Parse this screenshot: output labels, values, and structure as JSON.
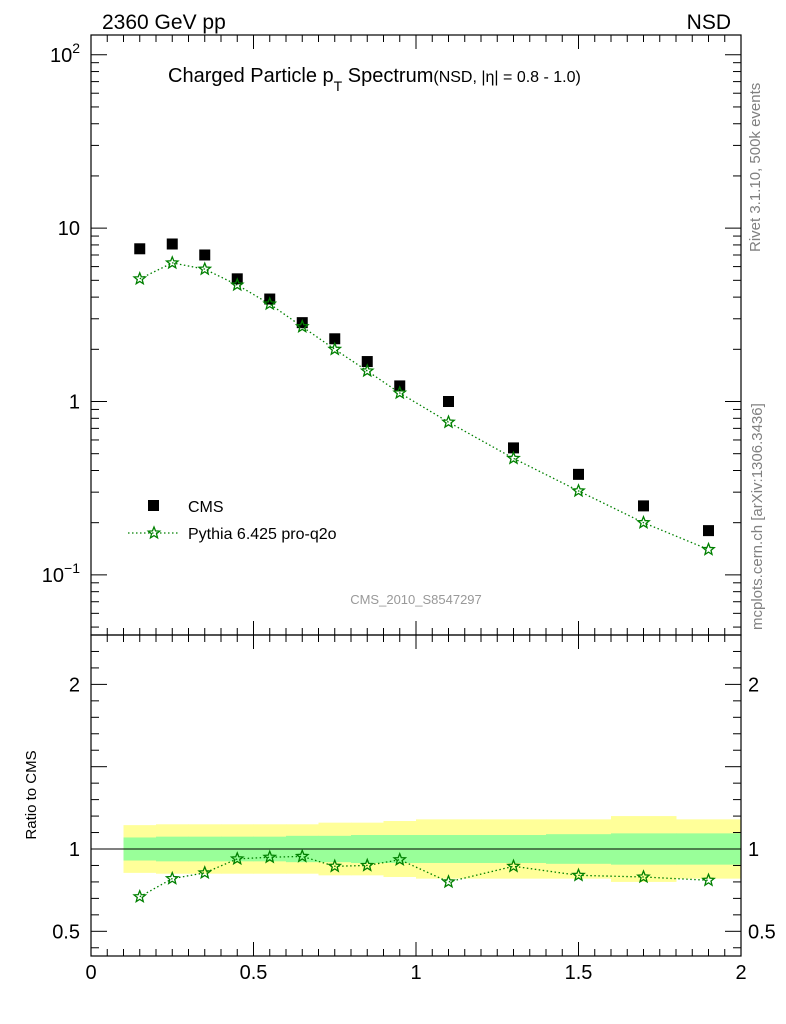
{
  "header": {
    "energy_label": "2360 GeV pp",
    "process_label": "NSD"
  },
  "side_labels": {
    "rivet": "Rivet 3.1.10,  500k events",
    "mcplots": "mcplots.cern.ch [arXiv:1306.3436]"
  },
  "analysis_tag": "CMS_2010_S8547297",
  "colors": {
    "data": "#000000",
    "mc": "#008000",
    "band_outer": "#ffff99",
    "band_inner": "#99ff99"
  },
  "chart_data": [
    {
      "type": "scatter",
      "panel": "main",
      "title_main": "Charged Particle p",
      "title_sub": "T",
      "title_main2": " Spectrum",
      "title_small": "(NSD, |η| = 0.8 - 1.0)",
      "yscale": "log",
      "xlim": [
        0,
        2
      ],
      "ylim": [
        0.045,
        130
      ],
      "yticks": [
        {
          "value": 100,
          "base": "10",
          "exp": "2"
        },
        {
          "value": 10,
          "base": "10",
          "exp": ""
        },
        {
          "value": 1,
          "base": "1",
          "exp": ""
        },
        {
          "value": 0.1,
          "base": "10",
          "exp": "−1"
        }
      ],
      "legend_position": "bottom-left",
      "series": [
        {
          "name": "CMS",
          "style": "square-marker",
          "x": [
            0.15,
            0.25,
            0.35,
            0.45,
            0.55,
            0.65,
            0.75,
            0.85,
            0.95,
            1.1,
            1.3,
            1.5,
            1.7,
            1.9
          ],
          "y": [
            7.6,
            8.1,
            7.0,
            5.1,
            3.9,
            2.85,
            2.3,
            1.7,
            1.23,
            1.0,
            0.54,
            0.38,
            0.25,
            0.18
          ]
        },
        {
          "name": "Pythia 6.425 pro-q2o",
          "style": "star-marker-dotted-line",
          "x": [
            0.15,
            0.25,
            0.35,
            0.45,
            0.55,
            0.65,
            0.75,
            0.85,
            0.95,
            1.1,
            1.3,
            1.5,
            1.7,
            1.9
          ],
          "y": [
            5.1,
            6.3,
            5.8,
            4.7,
            3.65,
            2.7,
            2.0,
            1.5,
            1.12,
            0.76,
            0.47,
            0.305,
            0.2,
            0.14
          ]
        }
      ]
    },
    {
      "type": "line",
      "panel": "ratio",
      "ylabel": "Ratio to CMS",
      "xlim": [
        0,
        2
      ],
      "ylim": [
        0.35,
        2.3
      ],
      "xticks": [
        {
          "value": 0,
          "label": "0"
        },
        {
          "value": 0.5,
          "label": "0.5"
        },
        {
          "value": 1,
          "label": "1"
        },
        {
          "value": 1.5,
          "label": "1.5"
        },
        {
          "value": 2,
          "label": "2"
        }
      ],
      "yticks": [
        {
          "value": 0.5,
          "label": "0.5"
        },
        {
          "value": 1,
          "label": "1"
        },
        {
          "value": 2,
          "label": "2"
        }
      ],
      "bands": {
        "edges": [
          0.1,
          0.2,
          0.3,
          0.4,
          0.5,
          0.6,
          0.7,
          0.8,
          0.9,
          1.0,
          1.2,
          1.4,
          1.6,
          1.8,
          2.0
        ],
        "outer_lo": [
          0.855,
          0.85,
          0.85,
          0.85,
          0.85,
          0.85,
          0.84,
          0.84,
          0.83,
          0.82,
          0.82,
          0.82,
          0.8,
          0.82
        ],
        "outer_hi": [
          1.145,
          1.15,
          1.15,
          1.15,
          1.15,
          1.15,
          1.16,
          1.16,
          1.17,
          1.18,
          1.18,
          1.18,
          1.2,
          1.18
        ],
        "inner_lo": [
          0.93,
          0.925,
          0.925,
          0.925,
          0.925,
          0.92,
          0.92,
          0.915,
          0.915,
          0.915,
          0.915,
          0.91,
          0.905,
          0.905
        ],
        "inner_hi": [
          1.07,
          1.075,
          1.075,
          1.075,
          1.075,
          1.08,
          1.08,
          1.085,
          1.085,
          1.085,
          1.085,
          1.09,
          1.095,
          1.095
        ]
      },
      "series": [
        {
          "name": "Pythia 6.425 pro-q2o",
          "x": [
            0.15,
            0.25,
            0.35,
            0.45,
            0.55,
            0.65,
            0.75,
            0.85,
            0.95,
            1.1,
            1.3,
            1.5,
            1.7,
            1.9
          ],
          "y": [
            0.71,
            0.82,
            0.855,
            0.94,
            0.95,
            0.955,
            0.895,
            0.9,
            0.935,
            0.8,
            0.895,
            0.84,
            0.83,
            0.81
          ]
        }
      ]
    }
  ]
}
